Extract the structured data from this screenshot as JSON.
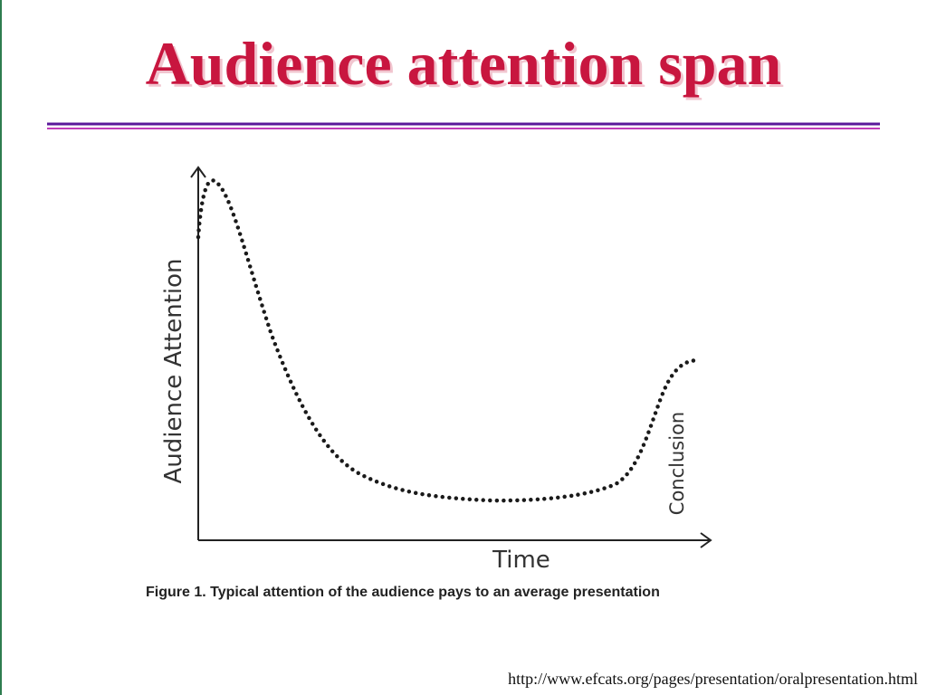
{
  "slide": {
    "title": "Audience attention span",
    "figure": {
      "y_axis_label": "Audience Attention",
      "x_axis_label": "Time",
      "annotation": "Conclusion",
      "caption": "Figure 1. Typical attention of the audience pays to an average presentation"
    },
    "source": "http://www.efcats.org/pages/presentation/oralpresentation.html"
  }
}
